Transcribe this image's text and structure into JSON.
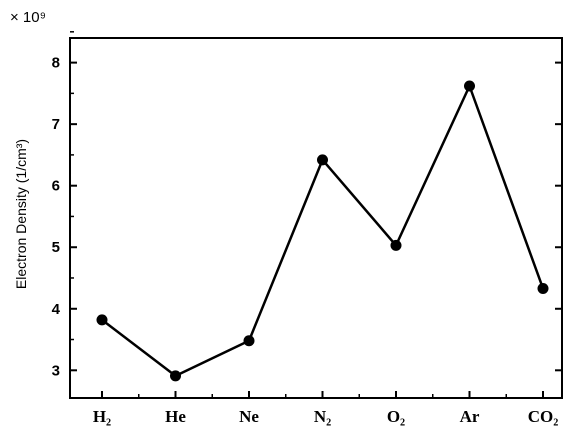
{
  "chart_data": {
    "type": "line",
    "title": "",
    "xlabel": "",
    "ylabel": "Electron Density (1/cm³)",
    "y_multiplier": "× 10⁹",
    "categories": [
      "H₂",
      "He",
      "Ne",
      "N₂",
      "O₂",
      "Ar",
      "CO₂"
    ],
    "series": [
      {
        "values": [
          3.82,
          2.91,
          3.48,
          6.42,
          5.03,
          7.62,
          4.33
        ]
      }
    ],
    "yticks": [
      "3",
      "4",
      "5",
      "6",
      "7",
      "8"
    ],
    "ylim": [
      2.55,
      8.4
    ],
    "grid": false,
    "legend": false,
    "colors": {
      "line": "#000000",
      "marker": "#000000",
      "axis": "#000000"
    }
  }
}
